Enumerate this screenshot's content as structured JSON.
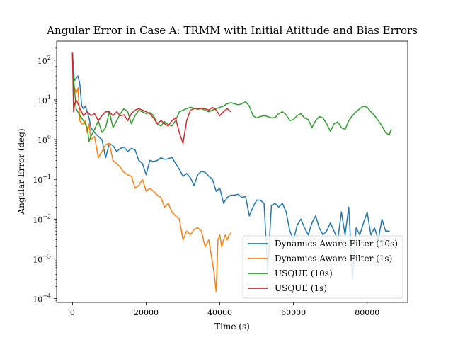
{
  "chart_data": {
    "type": "line",
    "title": "Angular Error in Case A: TRMM with Initial Atittude and Bias Errors",
    "xlabel": "Time (s)",
    "ylabel": "Angular Error (deg)",
    "xlim": [
      -4300,
      91000
    ],
    "ylim": [
      8e-05,
      300
    ],
    "yscale": "log",
    "xticks": [
      0,
      20000,
      40000,
      60000,
      80000
    ],
    "xtick_labels": [
      "0",
      "20000",
      "40000",
      "60000",
      "80000"
    ],
    "yticks": [
      0.0001,
      0.001,
      0.01,
      0.1,
      1,
      10,
      100
    ],
    "ytick_labels": [
      "10",
      "10",
      "10",
      "10",
      "10",
      "10",
      "10"
    ],
    "ytick_exponents": [
      "−4",
      "−3",
      "−2",
      "−1",
      "0",
      "1",
      "2"
    ],
    "grid": false,
    "legend_position": "lower-right",
    "series": [
      {
        "name": "Dynamics-Aware Filter (10s)",
        "color": "#1f77b4",
        "x": [
          0,
          500,
          1000,
          1500,
          2000,
          2500,
          3000,
          3500,
          4000,
          4500,
          5000,
          6000,
          7000,
          8000,
          9000,
          10000,
          11000,
          12000,
          13000,
          14000,
          15000,
          16000,
          17000,
          18000,
          19000,
          20000,
          21000,
          22000,
          23000,
          24000,
          25000,
          26000,
          27000,
          28000,
          29000,
          30000,
          31000,
          32000,
          33000,
          34000,
          35000,
          36000,
          37000,
          38000,
          39000,
          40000,
          41000,
          42000,
          43000,
          44000,
          45000,
          46000,
          47000,
          48000,
          49000,
          50000,
          51000,
          52000,
          53000,
          54000,
          55000,
          56000,
          57000,
          58000,
          59000,
          60000,
          61000,
          62000,
          63000,
          64000,
          65000,
          66000,
          67000,
          68000,
          69000,
          70000,
          71000,
          72000,
          73000,
          74000,
          75000,
          76000,
          77000,
          78000,
          79000,
          80000,
          81000,
          82000,
          83000,
          84000,
          85000,
          86000
        ],
        "values": [
          150,
          30,
          35,
          40,
          25,
          7,
          6,
          7,
          5,
          3.5,
          2,
          1.5,
          1.2,
          1.0,
          0.35,
          0.8,
          0.7,
          0.5,
          0.6,
          0.65,
          0.5,
          0.6,
          0.55,
          0.3,
          0.25,
          0.13,
          0.3,
          0.28,
          0.3,
          0.35,
          0.32,
          0.33,
          0.36,
          0.25,
          0.18,
          0.12,
          0.14,
          0.11,
          0.07,
          0.13,
          0.16,
          0.15,
          0.12,
          0.1,
          0.05,
          0.06,
          0.025,
          0.035,
          0.04,
          0.04,
          0.042,
          0.035,
          0.037,
          0.012,
          0.02,
          0.03,
          0.03,
          0.025,
          0.0005,
          0.022,
          0.025,
          0.02,
          0.025,
          0.015,
          0.005,
          0.003,
          0.007,
          0.01,
          0.006,
          0.004,
          0.008,
          0.012,
          0.006,
          0.004,
          0.005,
          0.008,
          0.005,
          0.003,
          0.015,
          0.004,
          0.02,
          0.0003,
          0.006,
          0.004,
          0.008,
          0.015,
          0.004,
          0.006,
          0.003,
          0.01,
          0.005,
          0.005
        ]
      },
      {
        "name": "Dynamics-Aware Filter (1s)",
        "color": "#ff7f0e",
        "x": [
          0,
          300,
          600,
          1000,
          1500,
          2000,
          2500,
          3000,
          3500,
          4000,
          4500,
          5000,
          6000,
          7000,
          8000,
          9000,
          10000,
          11000,
          12000,
          13000,
          14000,
          15000,
          16000,
          17000,
          18000,
          19000,
          20000,
          21000,
          22000,
          23000,
          24000,
          25000,
          26000,
          27000,
          28000,
          29000,
          30000,
          31000,
          32000,
          33000,
          34000,
          35000,
          36000,
          37000,
          38000,
          38500,
          39000,
          39500,
          40000,
          40500,
          41000,
          41500,
          42000,
          42500,
          43000
        ],
        "values": [
          120,
          25,
          20,
          15,
          20,
          3,
          2.5,
          2.5,
          3,
          1.5,
          2.5,
          1.0,
          1.2,
          0.35,
          0.5,
          0.75,
          0.8,
          0.3,
          0.25,
          0.2,
          0.15,
          0.13,
          0.12,
          0.06,
          0.07,
          0.1,
          0.05,
          0.06,
          0.05,
          0.04,
          0.035,
          0.02,
          0.025,
          0.015,
          0.012,
          0.01,
          0.003,
          0.005,
          0.004,
          0.0055,
          0.006,
          0.005,
          0.002,
          0.003,
          0.0008,
          0.0004,
          0.00015,
          0.003,
          0.004,
          0.002,
          0.003,
          0.004,
          0.003,
          0.004,
          0.0045
        ]
      },
      {
        "name": "USQUE (10s)",
        "color": "#2ca02c",
        "x": [
          0,
          500,
          1000,
          2000,
          3000,
          4000,
          4500,
          5000,
          6000,
          7000,
          8000,
          9000,
          10000,
          11000,
          12000,
          13000,
          14000,
          15000,
          16000,
          17000,
          18000,
          19000,
          20000,
          21000,
          22000,
          23000,
          24000,
          25000,
          26000,
          27000,
          28000,
          29000,
          30000,
          31000,
          32000,
          33000,
          34000,
          35000,
          36000,
          37000,
          38000,
          39000,
          40000,
          41000,
          42000,
          43000,
          44000,
          45000,
          46000,
          47000,
          48000,
          49000,
          50000,
          51000,
          52000,
          53000,
          54000,
          55000,
          56000,
          57000,
          58000,
          59000,
          60000,
          61000,
          62000,
          63000,
          64000,
          65000,
          66000,
          67000,
          68000,
          69000,
          70000,
          71000,
          72000,
          73000,
          74000,
          75000,
          76000,
          77000,
          78000,
          79000,
          80000,
          81000,
          82000,
          83000,
          84000,
          85000,
          86000,
          86500
        ],
        "values": [
          130,
          20,
          6,
          4,
          3,
          2,
          0.9,
          1.2,
          1.8,
          3.0,
          1.5,
          2.0,
          5.0,
          2.0,
          3.0,
          4.5,
          6.0,
          5.0,
          2.5,
          4.0,
          5.5,
          5.0,
          4.5,
          4.8,
          4.0,
          2.5,
          2.2,
          2.8,
          2.4,
          2.2,
          3.0,
          5.0,
          5.5,
          6.0,
          6.5,
          6.2,
          5.8,
          6.0,
          5.5,
          5.0,
          5.5,
          6.0,
          6.5,
          7.0,
          8.0,
          8.5,
          8.0,
          7.5,
          8.0,
          9.0,
          7.0,
          4.0,
          3.5,
          3.8,
          4.0,
          3.8,
          3.5,
          3.6,
          4.5,
          5.0,
          4.2,
          3.0,
          3.2,
          4.0,
          4.5,
          3.5,
          3.2,
          2.0,
          3.0,
          3.8,
          3.5,
          2.5,
          1.6,
          2.5,
          2.8,
          2.0,
          1.8,
          3.0,
          4.0,
          5.0,
          6.0,
          7.0,
          6.5,
          5.0,
          4.0,
          3.0,
          2.2,
          1.5,
          1.3,
          1.8
        ]
      },
      {
        "name": "USQUE (1s)",
        "color": "#d62728",
        "x": [
          0,
          300,
          600,
          1000,
          1500,
          2000,
          3000,
          4000,
          5000,
          6000,
          7000,
          8000,
          9000,
          10000,
          11000,
          12000,
          13000,
          14000,
          15000,
          16000,
          17000,
          18000,
          19000,
          20000,
          21000,
          22000,
          23000,
          24000,
          25000,
          26000,
          27000,
          28000,
          29000,
          30000,
          31000,
          32000,
          33000,
          34000,
          35000,
          36000,
          37000,
          38000,
          39000,
          40000,
          41000,
          42000,
          43000
        ],
        "values": [
          150,
          5,
          8,
          10,
          8,
          6,
          4,
          5,
          4,
          4.5,
          3,
          4,
          5,
          5,
          4,
          5,
          4,
          4.2,
          3,
          4.5,
          5.5,
          6,
          5.5,
          5,
          4.5,
          3.5,
          2.5,
          3.0,
          2.5,
          2.2,
          3,
          3.5,
          1.5,
          0.8,
          3.0,
          5.5,
          6.0,
          6.0,
          6.2,
          6.0,
          5.5,
          6.5,
          5.5,
          4.0,
          5.0,
          6.0,
          5.0
        ]
      }
    ]
  }
}
